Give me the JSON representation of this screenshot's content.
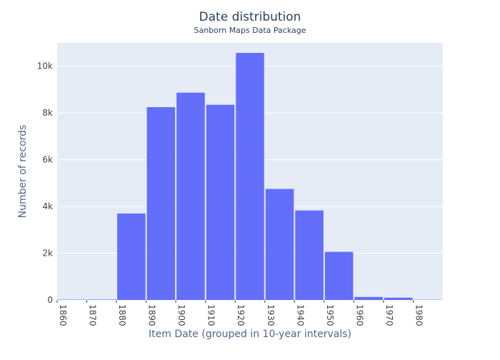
{
  "chart_data": {
    "type": "bar",
    "title": "Date distribution",
    "subtitle": "Sanborn Maps Data Package",
    "xlabel": "Item Date (grouped in 10-year intervals)",
    "ylabel": "Number of records",
    "xlim": [
      1860,
      1990
    ],
    "ylim": [
      0,
      11000
    ],
    "x_ticks": [
      "1860",
      "1870",
      "1880",
      "1890",
      "1900",
      "1910",
      "1920",
      "1930",
      "1940",
      "1950",
      "1960",
      "1970",
      "1980"
    ],
    "y_ticks": [
      "0",
      "2k",
      "4k",
      "6k",
      "8k",
      "10k"
    ],
    "bin_starts": [
      1860,
      1870,
      1880,
      1890,
      1900,
      1910,
      1920,
      1930,
      1940,
      1950,
      1960,
      1970,
      1980
    ],
    "bin_width": 10,
    "values": [
      15,
      20,
      3700,
      8250,
      8870,
      8350,
      10570,
      4750,
      3830,
      2060,
      130,
      100,
      10
    ],
    "grid": true,
    "colors": {
      "bar": "#636efa",
      "plot_bg": "#e5ecf6",
      "grid": "#ffffff",
      "text": "#2a3f5f",
      "axis_title": "#506784"
    }
  }
}
